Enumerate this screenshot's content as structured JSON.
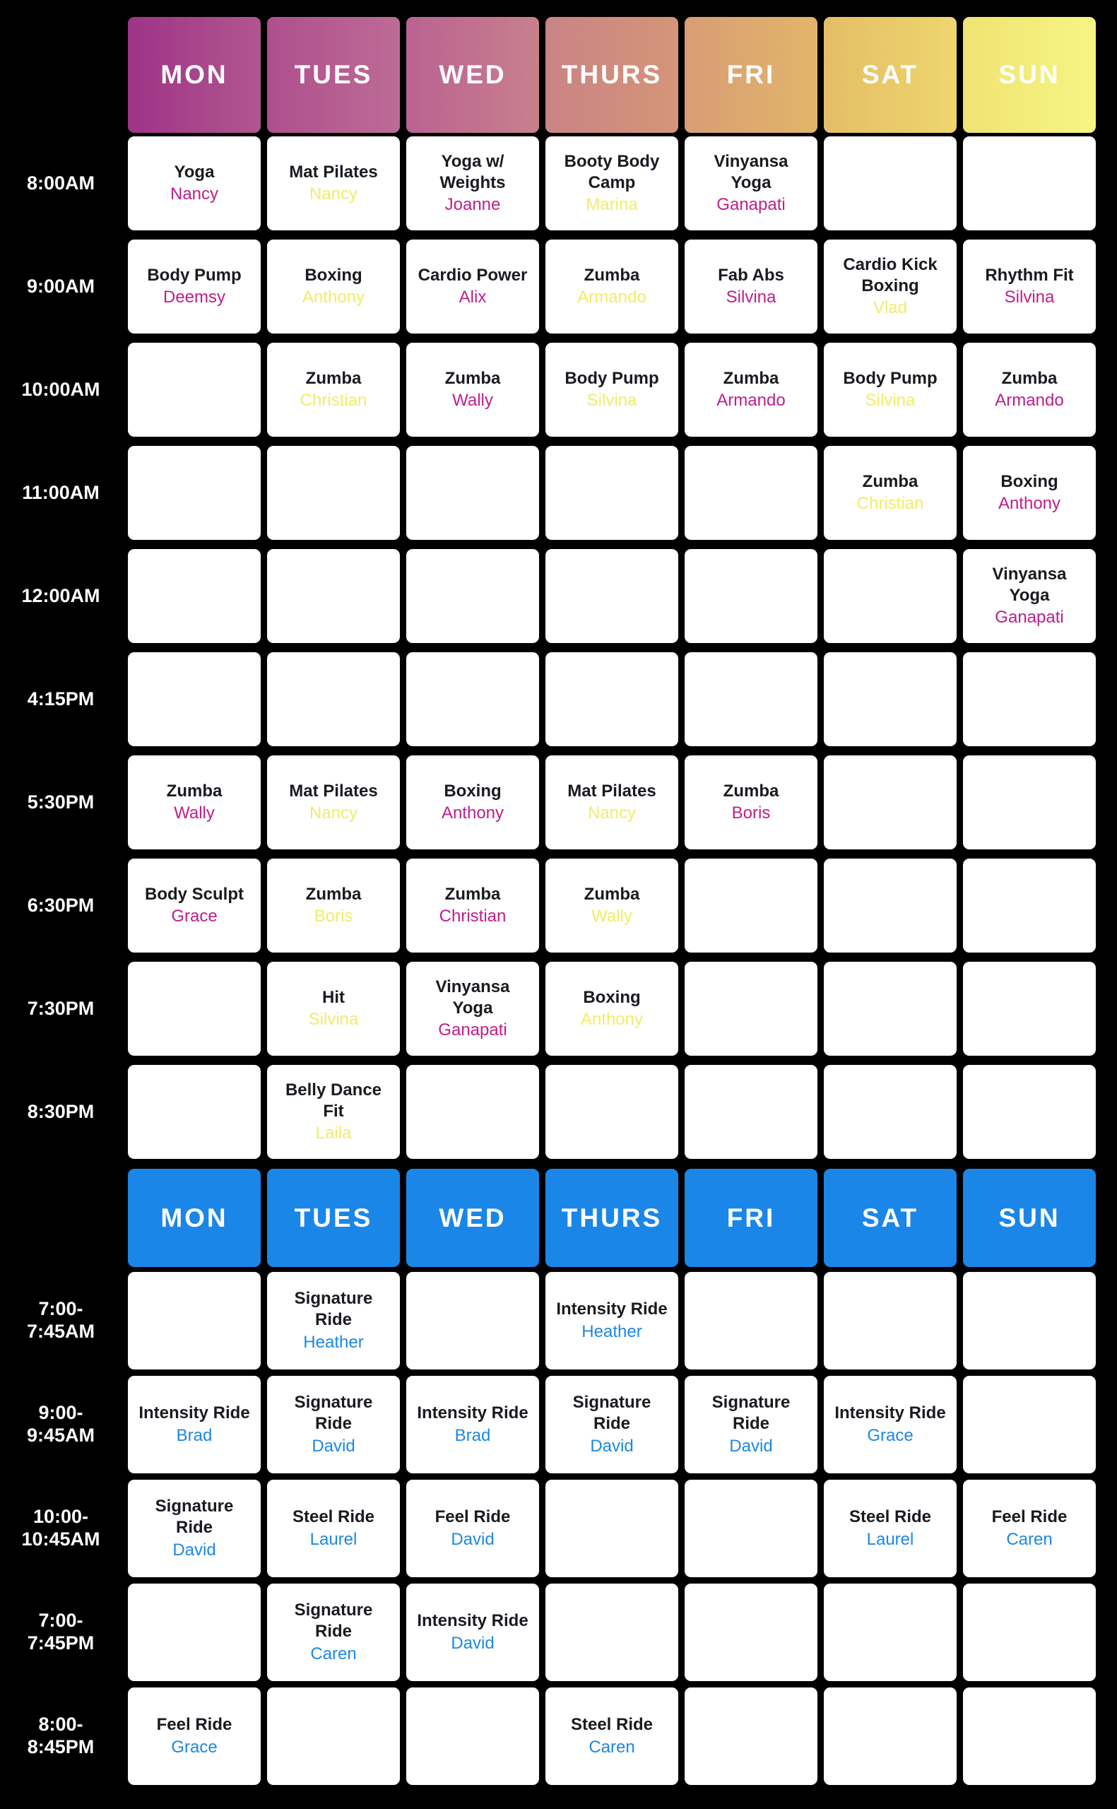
{
  "colors": {
    "page_background": "#000000",
    "cell_background": "#ffffff",
    "class_text": "#1a1a21",
    "time_label_text": "#ffffff",
    "day_header_text": "#ffffff",
    "tones": {
      "magenta": "#c01d8b",
      "yellow": "#f1ec69",
      "blue": "#1d87e6"
    },
    "ride_header_blue": "#1a86e8"
  },
  "group_schedule": {
    "days": [
      "MON",
      "TUES",
      "WED",
      "THURS",
      "FRI",
      "SAT",
      "SUN"
    ],
    "header_gradients": [
      [
        "#9e3387",
        "#b1568f"
      ],
      [
        "#ae4f8d",
        "#bd6b96"
      ],
      [
        "#ba6292",
        "#c8808c"
      ],
      [
        "#ca8385",
        "#d49578"
      ],
      [
        "#d89d74",
        "#e2b56b"
      ],
      [
        "#e4bd66",
        "#eed66e"
      ],
      [
        "#f0e373",
        "#f6f583"
      ]
    ],
    "rows": [
      {
        "time": "8:00AM",
        "cells": [
          {
            "class": "Yoga",
            "instructor": "Nancy",
            "tone": "magenta"
          },
          {
            "class": "Mat Pilates",
            "instructor": "Nancy",
            "tone": "yellow"
          },
          {
            "class": "Yoga w/ Weights",
            "instructor": "Joanne",
            "tone": "magenta"
          },
          {
            "class": "Booty Body Camp",
            "instructor": "Marina",
            "tone": "yellow"
          },
          {
            "class": "Vinyansa Yoga",
            "instructor": "Ganapati",
            "tone": "magenta"
          },
          null,
          null
        ]
      },
      {
        "time": "9:00AM",
        "cells": [
          {
            "class": "Body Pump",
            "instructor": "Deemsy",
            "tone": "magenta"
          },
          {
            "class": "Boxing",
            "instructor": "Anthony",
            "tone": "yellow"
          },
          {
            "class": "Cardio Power",
            "instructor": "Alix",
            "tone": "magenta"
          },
          {
            "class": "Zumba",
            "instructor": "Armando",
            "tone": "yellow"
          },
          {
            "class": "Fab Abs",
            "instructor": "Silvina",
            "tone": "magenta"
          },
          {
            "class": "Cardio Kick Boxing",
            "instructor": "Vlad",
            "tone": "yellow"
          },
          {
            "class": "Rhythm Fit",
            "instructor": "Silvina",
            "tone": "magenta"
          }
        ]
      },
      {
        "time": "10:00AM",
        "cells": [
          null,
          {
            "class": "Zumba",
            "instructor": "Christian",
            "tone": "yellow"
          },
          {
            "class": "Zumba",
            "instructor": "Wally",
            "tone": "magenta"
          },
          {
            "class": "Body Pump",
            "instructor": "Silvina",
            "tone": "yellow"
          },
          {
            "class": "Zumba",
            "instructor": "Armando",
            "tone": "magenta"
          },
          {
            "class": "Body Pump",
            "instructor": "Silvina",
            "tone": "yellow"
          },
          {
            "class": "Zumba",
            "instructor": "Armando",
            "tone": "magenta"
          }
        ]
      },
      {
        "time": "11:00AM",
        "cells": [
          null,
          null,
          null,
          null,
          null,
          {
            "class": "Zumba",
            "instructor": "Christian",
            "tone": "yellow"
          },
          {
            "class": "Boxing",
            "instructor": "Anthony",
            "tone": "magenta"
          }
        ]
      },
      {
        "time": "12:00AM",
        "cells": [
          null,
          null,
          null,
          null,
          null,
          null,
          {
            "class": "Vinyansa Yoga",
            "instructor": "Ganapati",
            "tone": "magenta"
          }
        ]
      },
      {
        "time": "4:15PM",
        "cells": [
          null,
          null,
          null,
          null,
          null,
          null,
          null
        ]
      },
      {
        "time": "5:30PM",
        "cells": [
          {
            "class": "Zumba",
            "instructor": "Wally",
            "tone": "magenta"
          },
          {
            "class": "Mat Pilates",
            "instructor": "Nancy",
            "tone": "yellow"
          },
          {
            "class": "Boxing",
            "instructor": "Anthony",
            "tone": "magenta"
          },
          {
            "class": "Mat Pilates",
            "instructor": "Nancy",
            "tone": "yellow"
          },
          {
            "class": "Zumba",
            "instructor": "Boris",
            "tone": "magenta"
          },
          null,
          null
        ]
      },
      {
        "time": "6:30PM",
        "cells": [
          {
            "class": "Body Sculpt",
            "instructor": "Grace",
            "tone": "magenta"
          },
          {
            "class": "Zumba",
            "instructor": "Boris",
            "tone": "yellow"
          },
          {
            "class": "Zumba",
            "instructor": "Christian",
            "tone": "magenta"
          },
          {
            "class": "Zumba",
            "instructor": "Wally",
            "tone": "yellow"
          },
          null,
          null,
          null
        ]
      },
      {
        "time": "7:30PM",
        "cells": [
          null,
          {
            "class": "Hit",
            "instructor": "Silvina",
            "tone": "yellow"
          },
          {
            "class": "Vinyansa Yoga",
            "instructor": "Ganapati",
            "tone": "magenta"
          },
          {
            "class": "Boxing",
            "instructor": "Anthony",
            "tone": "yellow"
          },
          null,
          null,
          null
        ]
      },
      {
        "time": "8:30PM",
        "cells": [
          null,
          {
            "class": "Belly Dance Fit",
            "instructor": "Laila",
            "tone": "yellow"
          },
          null,
          null,
          null,
          null,
          null
        ]
      }
    ]
  },
  "ride_schedule": {
    "days": [
      "MON",
      "TUES",
      "WED",
      "THURS",
      "FRI",
      "SAT",
      "SUN"
    ],
    "rows": [
      {
        "time": "7:00-7:45AM",
        "time_lines": [
          "7:00-",
          "7:45AM"
        ],
        "cells": [
          null,
          {
            "class": "Signature Ride",
            "instructor": "Heather",
            "tone": "blue"
          },
          null,
          {
            "class": "Intensity Ride",
            "instructor": "Heather",
            "tone": "blue"
          },
          null,
          null,
          null
        ]
      },
      {
        "time": "9:00-9:45AM",
        "time_lines": [
          "9:00-",
          "9:45AM"
        ],
        "cells": [
          {
            "class": "Intensity Ride",
            "instructor": "Brad",
            "tone": "blue"
          },
          {
            "class": "Signature Ride",
            "instructor": "David",
            "tone": "blue"
          },
          {
            "class": "Intensity Ride",
            "instructor": "Brad",
            "tone": "blue"
          },
          {
            "class": "Signature Ride",
            "instructor": "David",
            "tone": "blue"
          },
          {
            "class": "Signature Ride",
            "instructor": "David",
            "tone": "blue"
          },
          {
            "class": "Intensity Ride",
            "instructor": "Grace",
            "tone": "blue"
          },
          null
        ]
      },
      {
        "time": "10:00-10:45AM",
        "time_lines": [
          "10:00-",
          "10:45AM"
        ],
        "cells": [
          {
            "class": "Signature Ride",
            "instructor": "David",
            "tone": "blue"
          },
          {
            "class": "Steel Ride",
            "instructor": "Laurel",
            "tone": "blue"
          },
          {
            "class": "Feel Ride",
            "instructor": "David",
            "tone": "blue"
          },
          null,
          null,
          {
            "class": "Steel Ride",
            "instructor": "Laurel",
            "tone": "blue"
          },
          {
            "class": "Feel Ride",
            "instructor": "Caren",
            "tone": "blue"
          }
        ]
      },
      {
        "time": "7:00-7:45PM",
        "time_lines": [
          "7:00-",
          "7:45PM"
        ],
        "cells": [
          null,
          {
            "class": "Signature Ride",
            "instructor": "Caren",
            "tone": "blue"
          },
          {
            "class": "Intensity Ride",
            "instructor": "David",
            "tone": "blue"
          },
          null,
          null,
          null,
          null
        ]
      },
      {
        "time": "8:00-8:45PM",
        "time_lines": [
          "8:00-",
          "8:45PM"
        ],
        "cells": [
          {
            "class": "Feel Ride",
            "instructor": "Grace",
            "tone": "blue"
          },
          null,
          null,
          {
            "class": "Steel Ride",
            "instructor": "Caren",
            "tone": "blue"
          },
          null,
          null,
          null
        ]
      }
    ]
  }
}
